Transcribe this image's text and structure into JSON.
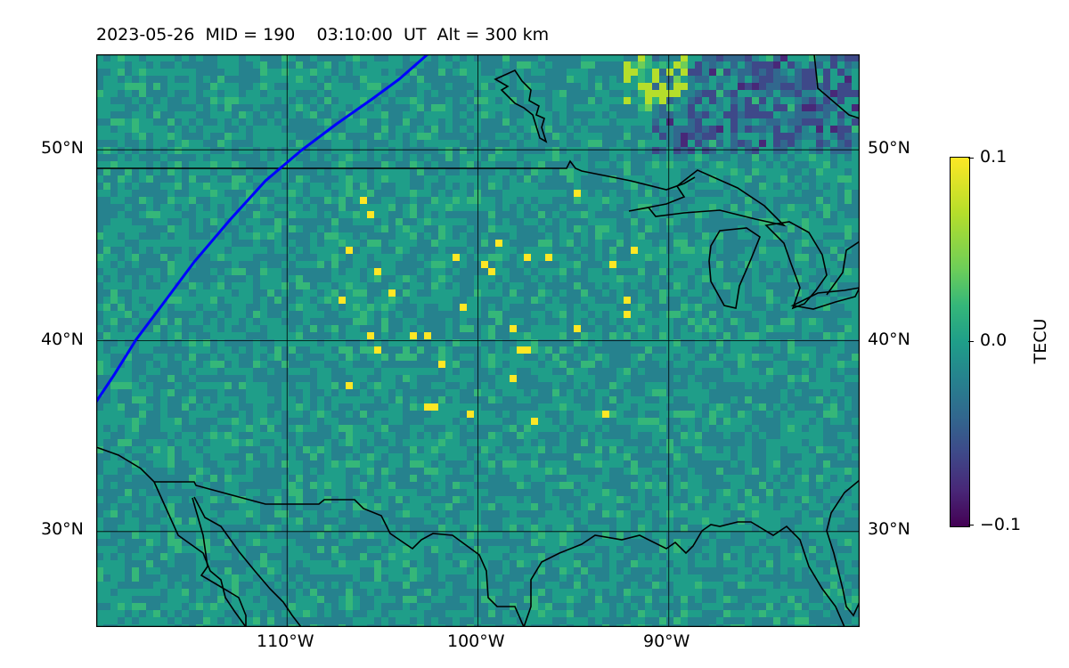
{
  "title": {
    "date": "2023-05-26",
    "mid": "MID = 190",
    "time": "03:10:00  UT",
    "alt": "Alt = 300 km",
    "full": "2023-05-26  MID = 190    03:10:00  UT  Alt = 300 km"
  },
  "map": {
    "lon_range": [
      -120,
      -80
    ],
    "lat_range": [
      25,
      55
    ],
    "lat_ticks": [
      {
        "value": 50,
        "label": "50°N"
      },
      {
        "value": 40,
        "label": "40°N"
      },
      {
        "value": 30,
        "label": "30°N"
      }
    ],
    "lon_ticks": [
      {
        "value": -110,
        "label": "110°W"
      },
      {
        "value": -100,
        "label": "100°W"
      },
      {
        "value": -90,
        "label": "90°W"
      }
    ],
    "terminator_line_color": "#0000ff",
    "coastline_color": "#000000",
    "colormap": "viridis",
    "field_quantity": "TEC anomaly"
  },
  "colorbar": {
    "label": "TECU",
    "range": [
      -0.1,
      0.1
    ],
    "ticks": [
      {
        "value": 0.1,
        "label": "0.1"
      },
      {
        "value": 0.0,
        "label": "0.0"
      },
      {
        "value": -0.1,
        "label": "−0.1"
      }
    ]
  }
}
